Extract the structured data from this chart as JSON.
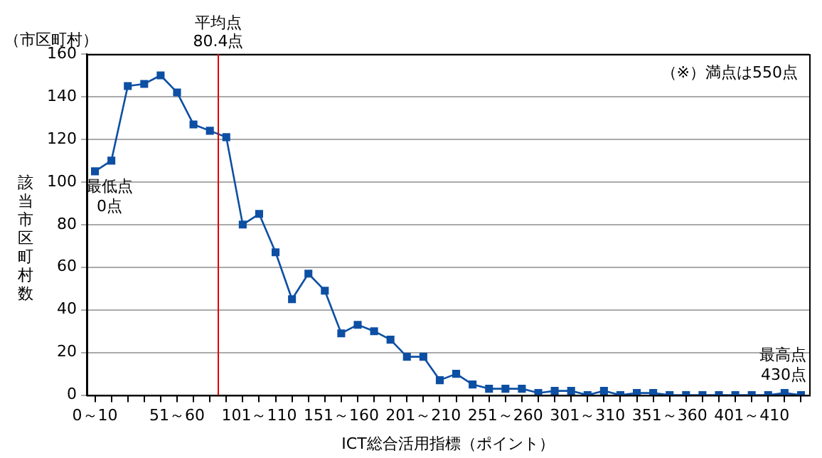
{
  "chart_data": {
    "type": "line",
    "xlabel": "ICT総合活用指標（ポイント）",
    "ylabel": "該当市区町村数",
    "categories": [
      "0～10",
      null,
      null,
      null,
      null,
      "51～60",
      null,
      null,
      null,
      null,
      "101～110",
      null,
      null,
      null,
      null,
      "151～160",
      null,
      null,
      null,
      null,
      "201～210",
      null,
      null,
      null,
      null,
      "251～260",
      null,
      null,
      null,
      null,
      "301～310",
      null,
      null,
      null,
      null,
      "351～360",
      null,
      null,
      null,
      null,
      "401～410",
      null,
      null,
      null
    ],
    "series": [
      {
        "color": "#0d4fa3",
        "values": [
          105,
          110,
          145,
          146,
          150,
          142,
          127,
          124,
          121,
          80,
          85,
          67,
          45,
          57,
          49,
          29,
          33,
          30,
          26,
          18,
          18,
          7,
          10,
          5,
          3,
          3,
          3,
          1,
          2,
          2,
          0,
          2,
          0,
          1,
          1,
          0,
          0,
          0,
          0,
          0,
          0,
          0,
          1,
          0
        ]
      }
    ],
    "ylim": [
      0,
      160
    ],
    "yticks": [
      0,
      20,
      40,
      60,
      80,
      100,
      120,
      140,
      160
    ],
    "annotations": [
      "（市区町村）",
      "最低点\n0点",
      "最高点\n430点",
      "（※）満点は550点",
      "平均点\n80.4点"
    ],
    "grid": "y",
    "legend": false,
    "marker": "square",
    "line_style": "solid"
  }
}
